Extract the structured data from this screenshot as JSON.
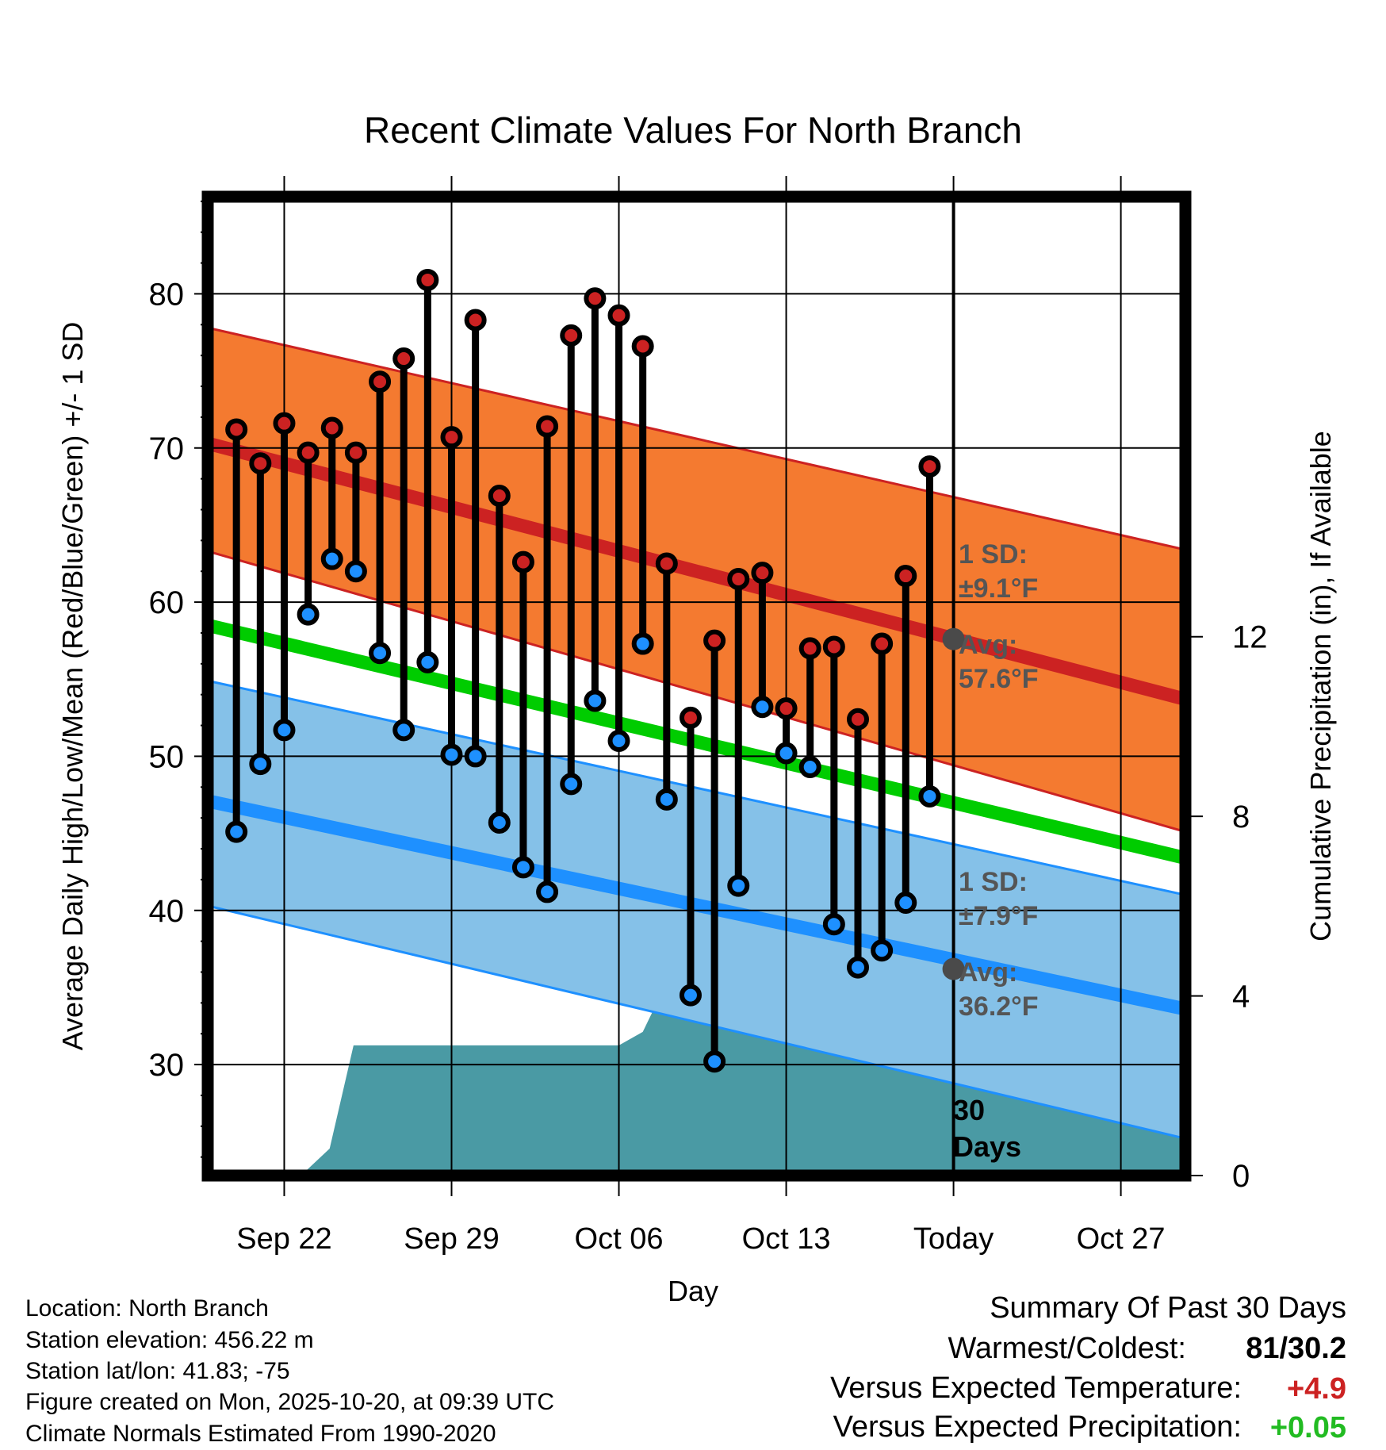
{
  "chart_data": {
    "type": "line",
    "title": "Recent Climate Values For North Branch",
    "xlabel": "Day",
    "ylabel_left": "Average Daily High/Low/Mean (Red/Blue/Green) +/- 1 SD",
    "ylabel_right": "Cumulative Precipitation (in), If Available",
    "x_range": [
      -3.2,
      37.7
    ],
    "x_ticks": [
      {
        "day": 0,
        "label": "Sep 22"
      },
      {
        "day": 7,
        "label": "Sep 29"
      },
      {
        "day": 14,
        "label": "Oct 06"
      },
      {
        "day": 21,
        "label": "Oct 13"
      },
      {
        "day": 28,
        "label": "Today"
      },
      {
        "day": 35,
        "label": "Oct 27"
      }
    ],
    "y_left_range": [
      22.8,
      86.3
    ],
    "y_left_ticks": [
      30,
      40,
      50,
      60,
      70,
      80
    ],
    "y_left_minor_step": 2,
    "y_right_range": [
      0,
      21.8
    ],
    "y_right_ticks": [
      0,
      4,
      8,
      12
    ],
    "grid": true,
    "normals": {
      "high_mean": [
        70.3,
        53.7
      ],
      "high_upper": [
        77.8,
        63.4
      ],
      "high_lower": [
        63.3,
        45.1
      ],
      "mean": [
        58.5,
        43.4
      ],
      "low_mean": [
        47.1,
        33.6
      ],
      "low_upper": [
        54.9,
        41.0
      ],
      "low_lower": [
        40.3,
        25.2
      ]
    },
    "today": {
      "day": 28,
      "high_avg": 57.6,
      "low_avg": 36.2,
      "high_sd_label": "1 SD:",
      "high_sd_value": "±9.1°F",
      "high_avg_label": "Avg:",
      "high_avg_value": "57.6°F",
      "low_sd_label": "1 SD:",
      "low_sd_value": "±7.9°F",
      "low_avg_label": "Avg:",
      "low_avg_value": "36.2°F",
      "window_label_1": "30",
      "window_label_2": "Days"
    },
    "series": [
      {
        "name": "Daily High",
        "color": "#cc2222",
        "values": [
          71.2,
          69.0,
          71.6,
          69.7,
          71.3,
          69.7,
          74.3,
          75.8,
          80.9,
          70.7,
          78.3,
          66.9,
          62.6,
          71.4,
          77.3,
          79.7,
          78.6,
          76.6,
          62.5,
          52.5,
          57.5,
          61.5,
          61.9,
          53.1,
          57.0,
          57.1,
          52.4,
          57.3,
          61.7,
          68.8
        ]
      },
      {
        "name": "Daily Low",
        "color": "#1e90ff",
        "values": [
          45.1,
          49.5,
          51.7,
          59.2,
          62.8,
          62.0,
          56.7,
          51.7,
          56.1,
          50.1,
          50.0,
          45.7,
          42.8,
          41.2,
          48.2,
          53.6,
          51.0,
          57.3,
          47.2,
          34.5,
          30.2,
          41.6,
          53.2,
          50.2,
          49.3,
          39.1,
          36.3,
          37.4,
          40.5,
          47.4
        ]
      }
    ],
    "first_day": -2,
    "precip": {
      "color": "#4a9aa4",
      "days": [
        -3.2,
        0.7,
        1.9,
        2.9,
        14.0,
        15.0,
        16.0,
        22.0,
        37.7
      ],
      "values": [
        0,
        0,
        0.6,
        2.9,
        2.9,
        3.2,
        4.3,
        4.5,
        4.5
      ]
    }
  },
  "footer": {
    "location": "Location: North Branch",
    "elevation": "Station elevation: 456.22 m",
    "latlon": "Station lat/lon: 41.83; -75",
    "created": "Figure created on Mon, 2025-10-20, at 09:39 UTC",
    "normals": "Climate Normals Estimated From 1990-2020"
  },
  "summary": {
    "title": "Summary Of Past 30 Days",
    "warm_cold_label": "Warmest/Coldest:",
    "warm_cold_value": "81/30.2",
    "temp_label": "Versus Expected Temperature:",
    "temp_value": "+4.9",
    "temp_color": "#cc2222",
    "precip_label": "Versus Expected Precipitation:",
    "precip_value": "+0.05",
    "precip_color": "#22bb22"
  }
}
